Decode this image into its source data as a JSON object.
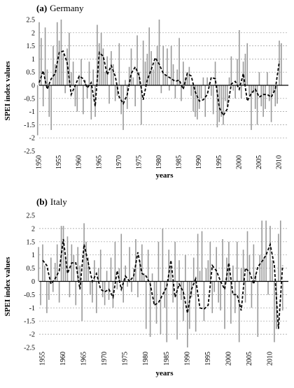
{
  "chart_data": [
    {
      "type": "line",
      "panel_tag": "(a)",
      "panel_name": "Germany",
      "xlabel": "years",
      "ylabel": "SPEI index values",
      "ylim": [
        -2.5,
        2.5
      ],
      "yticks": [
        2.5,
        2,
        1.5,
        1,
        0.5,
        0,
        -0.5,
        -1,
        -1.5,
        -2,
        -2.5
      ],
      "ytick_labels": [
        "2.5",
        "2",
        "1.5",
        "1",
        "0.5",
        "0",
        "-0.5",
        "-1",
        "-1.5",
        "-2",
        "-2.5"
      ],
      "xlim": [
        1949,
        2011
      ],
      "xticks": [
        1950,
        1955,
        1960,
        1965,
        1970,
        1975,
        1980,
        1985,
        1990,
        1995,
        2000,
        2005,
        2010
      ],
      "grid_lines": [
        2,
        1.5,
        1,
        0.5,
        -0.5,
        -1,
        -1.5,
        -2
      ],
      "series": [
        {
          "style": "monthly-gray-bars",
          "color": "#9a9a9a",
          "x": [
            1949.6,
            1950.0,
            1950.5,
            1951.0,
            1951.5,
            1952.0,
            1952.5,
            1953.0,
            1953.5,
            1954.0,
            1954.5,
            1955.0,
            1955.5,
            1956.0,
            1956.5,
            1957.0,
            1957.5,
            1958.0,
            1958.5,
            1959.0,
            1959.5,
            1960.0,
            1960.5,
            1961.0,
            1961.5,
            1962.0,
            1962.5,
            1963.0,
            1963.5,
            1964.0,
            1964.5,
            1965.0,
            1965.5,
            1966.0,
            1966.5,
            1967.0,
            1967.5,
            1968.0,
            1968.5,
            1969.0,
            1969.5,
            1970.0,
            1970.5,
            1971.0,
            1971.5,
            1972.0,
            1972.5,
            1973.0,
            1973.5,
            1974.0,
            1974.5,
            1975.0,
            1975.5,
            1976.0,
            1976.5,
            1977.0,
            1977.5,
            1978.0,
            1978.5,
            1979.0,
            1979.5,
            1980.0,
            1980.5,
            1981.0,
            1981.5,
            1982.0,
            1982.5,
            1983.0,
            1983.5,
            1984.0,
            1984.5,
            1985.0,
            1985.5,
            1986.0,
            1986.5,
            1987.0,
            1987.5,
            1988.0,
            1988.5,
            1989.0,
            1989.5,
            1990.0,
            1990.5,
            1991.0,
            1991.5,
            1992.0,
            1992.5,
            1993.0,
            1993.5,
            1994.0,
            1994.5,
            1995.0,
            1995.5,
            1996.0,
            1996.5,
            1997.0,
            1997.5,
            1998.0,
            1998.5,
            1999.0,
            1999.5,
            2000.0,
            2000.5,
            2001.0,
            2001.5,
            2002.0,
            2002.5,
            2003.0,
            2003.5,
            2004.0,
            2004.5,
            2005.0,
            2005.5,
            2006.0,
            2006.5,
            2007.0,
            2007.5,
            2008.0,
            2008.5,
            2009.0,
            2009.5,
            2010.0,
            2010.5
          ],
          "values": [
            -1.9,
            2.4,
            1.8,
            -0.8,
            2.2,
            0.6,
            -1.2,
            -1.7,
            1.5,
            0.8,
            2.4,
            1.7,
            2.5,
            1.2,
            -0.3,
            1.4,
            2.0,
            0.5,
            0.9,
            -0.8,
            -1.0,
            0.4,
            1.0,
            -1.1,
            0.2,
            -0.5,
            0.9,
            -1.3,
            0.6,
            -1.2,
            2.3,
            1.6,
            2.0,
            1.4,
            0.5,
            1.1,
            -0.7,
            1.3,
            0.8,
            -0.6,
            -0.4,
            1.6,
            -1.1,
            -1.7,
            0.2,
            -0.9,
            0.7,
            1.4,
            0.3,
            -0.8,
            1.9,
            0.5,
            -1.5,
            1.7,
            0.9,
            1.2,
            2.2,
            1.3,
            0.6,
            0.9,
            1.5,
            2.5,
            -0.3,
            1.5,
            0.4,
            1.4,
            -0.2,
            1.5,
            0.8,
            -0.5,
            0.6,
            1.8,
            -0.6,
            0.9,
            0.3,
            0.5,
            0.7,
            -0.4,
            -1.0,
            -1.2,
            -1.3,
            -0.9,
            -0.5,
            0.3,
            -1.2,
            0.3,
            0.1,
            -0.4,
            -1.1,
            0.9,
            -1.6,
            -1.4,
            -1.2,
            -1.5,
            -0.6,
            -0.8,
            0.3,
            1.1,
            -0.2,
            -0.5,
            1.0,
            2.1,
            -0.5,
            0.9,
            1.2,
            1.6,
            -0.4,
            -1.7,
            -0.3,
            -0.9,
            -1.5,
            0.5,
            -0.8,
            -1.2,
            -0.9,
            0.5,
            -0.6,
            -1.4,
            -0.3,
            -0.8,
            -0.7,
            1.7,
            1.6
          ]
        },
        {
          "style": "annual-dashed",
          "color": "#000000",
          "x": [
            1950,
            1951,
            1952,
            1953,
            1954,
            1955,
            1956,
            1957,
            1958,
            1959,
            1960,
            1961,
            1962,
            1963,
            1964,
            1965,
            1966,
            1967,
            1968,
            1969,
            1970,
            1971,
            1972,
            1973,
            1974,
            1975,
            1976,
            1977,
            1978,
            1979,
            1980,
            1981,
            1982,
            1983,
            1984,
            1985,
            1986,
            1987,
            1988,
            1989,
            1990,
            1991,
            1992,
            1993,
            1994,
            1995,
            1996,
            1997,
            1998,
            1999,
            2000,
            2001,
            2002,
            2003,
            2004,
            2005,
            2006,
            2007,
            2008,
            2009,
            2010
          ],
          "values": [
            0.1,
            0.55,
            -0.15,
            0.25,
            0.45,
            1.25,
            1.3,
            0.85,
            -0.35,
            0.0,
            0.35,
            0.25,
            -0.1,
            0.1,
            -0.8,
            1.25,
            1.1,
            0.4,
            0.75,
            0.35,
            -0.45,
            -0.7,
            -0.35,
            0.45,
            0.7,
            0.35,
            -0.55,
            0.2,
            0.6,
            1.05,
            0.8,
            0.45,
            0.35,
            0.25,
            0.15,
            0.2,
            -0.15,
            0.45,
            0.35,
            -0.25,
            -0.6,
            -0.55,
            -0.35,
            0.3,
            0.25,
            -0.85,
            -1.15,
            -0.9,
            0.05,
            0.15,
            -0.15,
            0.45,
            -0.6,
            -0.3,
            -0.15,
            -0.45,
            -0.35,
            -0.35,
            -0.45,
            -0.15,
            0.9
          ]
        }
      ]
    },
    {
      "type": "line",
      "panel_tag": "(b)",
      "panel_name": "Italy",
      "xlabel": "years",
      "ylabel": "SPEI index values",
      "ylim": [
        -2.5,
        2.5
      ],
      "yticks": [
        2.5,
        2,
        1.5,
        1,
        0.5,
        0,
        -0.5,
        -1,
        -1.5,
        -2,
        -2.5
      ],
      "ytick_labels": [
        "2.5",
        "2",
        "1.5",
        "1",
        "0.5",
        "0",
        "-0.5",
        "-1",
        "-1.5",
        "-2",
        "-2.5"
      ],
      "xlim": [
        1953.5,
        2014
      ],
      "xticks": [
        1955,
        1960,
        1965,
        1970,
        1975,
        1980,
        1985,
        1990,
        1995,
        2000,
        2005,
        2010
      ],
      "grid_lines": [
        2,
        1.5,
        1,
        0.5,
        -0.5,
        -1,
        -1.5,
        -2
      ],
      "series": [
        {
          "style": "monthly-gray-bars",
          "color": "#9a9a9a",
          "x": [
            1954.0,
            1954.5,
            1955.0,
            1955.5,
            1956.0,
            1956.5,
            1957.0,
            1957.5,
            1958.0,
            1958.5,
            1959.0,
            1959.5,
            1960.0,
            1960.5,
            1961.0,
            1961.5,
            1962.0,
            1962.5,
            1963.0,
            1963.5,
            1964.0,
            1964.5,
            1965.0,
            1965.5,
            1966.0,
            1966.5,
            1967.0,
            1967.5,
            1968.0,
            1968.5,
            1969.0,
            1969.5,
            1970.0,
            1970.5,
            1971.0,
            1971.5,
            1972.0,
            1972.5,
            1973.0,
            1973.5,
            1974.0,
            1974.5,
            1975.0,
            1975.5,
            1976.0,
            1976.5,
            1977.0,
            1977.5,
            1978.0,
            1978.5,
            1979.0,
            1979.5,
            1980.0,
            1980.5,
            1981.0,
            1981.5,
            1982.0,
            1982.5,
            1983.0,
            1983.5,
            1984.0,
            1984.5,
            1985.0,
            1985.5,
            1986.0,
            1986.5,
            1987.0,
            1987.5,
            1988.0,
            1988.5,
            1989.0,
            1989.5,
            1990.0,
            1990.5,
            1991.0,
            1991.5,
            1992.0,
            1992.5,
            1993.0,
            1993.5,
            1994.0,
            1994.5,
            1995.0,
            1995.5,
            1996.0,
            1996.5,
            1997.0,
            1997.5,
            1998.0,
            1998.5,
            1999.0,
            1999.5,
            2000.0,
            2000.5,
            2001.0,
            2001.5,
            2002.0,
            2002.5,
            2003.0,
            2003.5,
            2004.0,
            2004.5,
            2005.0,
            2005.5,
            2006.0,
            2006.5,
            2007.0,
            2007.5,
            2008.0,
            2008.5,
            2009.0,
            2009.5,
            2010.0,
            2010.5,
            2011.0,
            2011.5,
            2012.0,
            2012.5,
            2013.0
          ],
          "values": [
            1.3,
            -0.9,
            1.4,
            0.6,
            -1.2,
            -0.7,
            0.9,
            -0.4,
            0.7,
            1.4,
            -0.8,
            2.1,
            2.1,
            0.9,
            1.7,
            -0.6,
            1.4,
            1.0,
            -0.9,
            1.3,
            0.6,
            -1.5,
            2.2,
            1.5,
            0.9,
            -0.5,
            -0.8,
            0.8,
            -1.2,
            0.5,
            1.2,
            -0.6,
            -0.9,
            0.4,
            -0.7,
            0.9,
            -1.0,
            1.5,
            -0.3,
            0.5,
            1.8,
            -0.8,
            0.6,
            -0.2,
            1.3,
            -0.4,
            0.5,
            1.6,
            -0.6,
            0.8,
            1.4,
            0.3,
            -1.8,
            1.2,
            -2.1,
            0.3,
            -0.9,
            -1.6,
            1.5,
            -2.0,
            2.0,
            -1.0,
            -2.3,
            1.2,
            0.5,
            -0.8,
            1.5,
            -2.2,
            0.8,
            -0.7,
            -1.5,
            1.0,
            -2.5,
            -1.8,
            -0.6,
            0.9,
            -1.9,
            1.8,
            0.4,
            1.9,
            -1.5,
            0.5,
            0.8,
            1.5,
            -1.2,
            -0.4,
            1.3,
            -0.8,
            -1.1,
            1.6,
            -1.8,
            0.9,
            1.5,
            -1.6,
            0.6,
            -1.2,
            1.5,
            -2.3,
            0.5,
            1.2,
            -0.8,
            1.9,
            1.0,
            -1.0,
            1.4,
            0.3,
            -2.1,
            1.0,
            2.3,
            0.9,
            2.3,
            -0.5,
            2.1,
            0.8,
            -2.3,
            -1.8,
            1.8,
            2.3,
            -1.1
          ]
        },
        {
          "style": "annual-dashed",
          "color": "#000000",
          "x": [
            1955,
            1956,
            1957,
            1958,
            1959,
            1960,
            1961,
            1962,
            1963,
            1964,
            1965,
            1966,
            1967,
            1968,
            1969,
            1970,
            1971,
            1972,
            1973,
            1974,
            1975,
            1976,
            1977,
            1978,
            1979,
            1980,
            1981,
            1982,
            1983,
            1984,
            1985,
            1986,
            1987,
            1988,
            1989,
            1990,
            1991,
            1992,
            1993,
            1994,
            1995,
            1996,
            1997,
            1998,
            1999,
            2000,
            2001,
            2002,
            2003,
            2004,
            2005,
            2006,
            2007,
            2008,
            2009,
            2010,
            2011,
            2012,
            2013
          ],
          "values": [
            0.8,
            0.6,
            -0.1,
            0.1,
            0.4,
            1.6,
            0.3,
            0.7,
            0.7,
            -0.3,
            1.4,
            0.7,
            0.0,
            0.3,
            -0.3,
            -0.4,
            -0.3,
            -0.6,
            0.4,
            -0.3,
            0.2,
            0.0,
            0.2,
            1.1,
            0.3,
            0.2,
            -0.1,
            -0.9,
            -0.8,
            -0.5,
            -0.2,
            0.8,
            -0.6,
            -0.1,
            -0.4,
            -1.2,
            -0.3,
            0.1,
            -1.0,
            -1.05,
            -0.9,
            0.6,
            0.4,
            0.0,
            -0.3,
            0.7,
            -0.5,
            -0.5,
            -1.1,
            0.5,
            0.35,
            -0.1,
            0.55,
            0.75,
            1.0,
            1.4,
            0.6,
            -1.8,
            0.6
          ]
        }
      ]
    }
  ]
}
